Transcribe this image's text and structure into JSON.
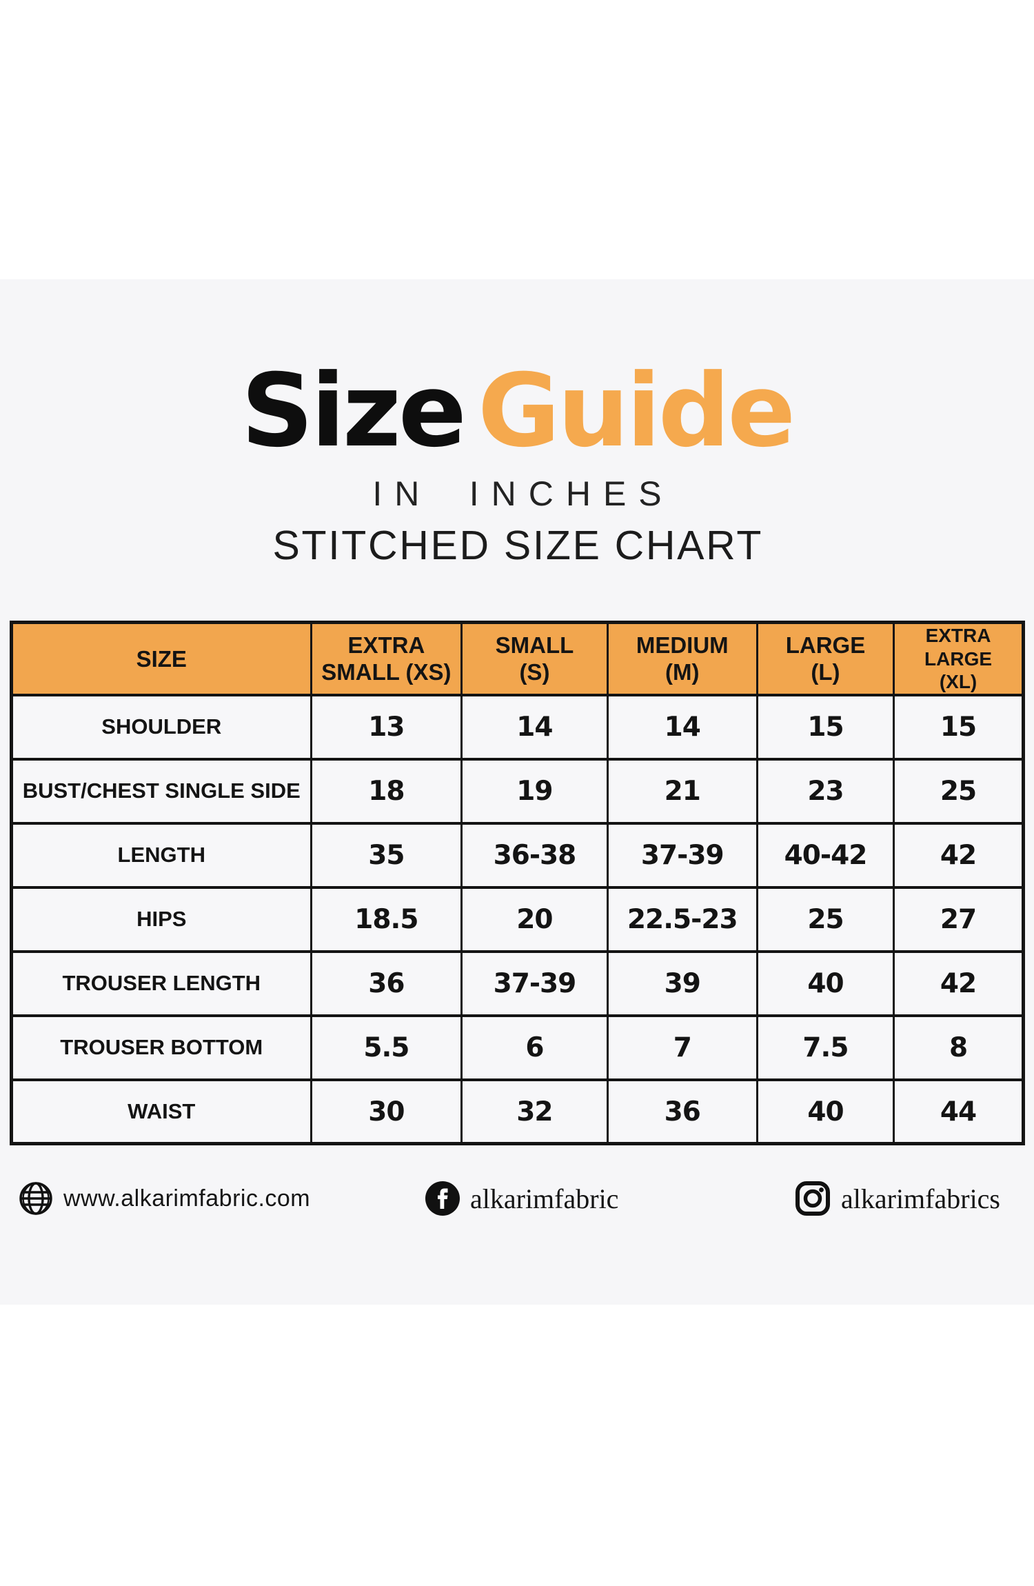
{
  "header": {
    "title_black": "Size",
    "title_orange": "Guide",
    "subtitle1": "IN INCHES",
    "subtitle2": "STITCHED SIZE CHART"
  },
  "colors": {
    "accent_orange": "#F5A94E",
    "table_header_orange": "#F2A64E",
    "band_gray": "#F6F6F8",
    "cell_background": "#F7F7F9",
    "text_ink": "#141414"
  },
  "chart_data": {
    "type": "table",
    "title": "Size Guide",
    "subtitle": [
      "IN INCHES",
      "STITCHED SIZE CHART"
    ],
    "units": "inches",
    "columns": [
      "SIZE",
      "EXTRA\nSMALL (XS)",
      "SMALL\n(S)",
      "MEDIUM\n(M)",
      "LARGE\n(L)",
      "EXTRA LARGE\n(XL)"
    ],
    "rows": [
      {
        "label": "SHOULDER",
        "values": [
          "13",
          "14",
          "14",
          "15",
          "15"
        ]
      },
      {
        "label": "BUST/CHEST SINGLE SIDE",
        "values": [
          "18",
          "19",
          "21",
          "23",
          "25"
        ]
      },
      {
        "label": "LENGTH",
        "values": [
          "35",
          "36-38",
          "37-39",
          "40-42",
          "42"
        ]
      },
      {
        "label": "HIPS",
        "values": [
          "18.5",
          "20",
          "22.5-23",
          "25",
          "27"
        ]
      },
      {
        "label": "TROUSER LENGTH",
        "values": [
          "36",
          "37-39",
          "39",
          "40",
          "42"
        ]
      },
      {
        "label": "TROUSER BOTTOM",
        "values": [
          "5.5",
          "6",
          "7",
          "7.5",
          "8"
        ]
      },
      {
        "label": "WAIST",
        "values": [
          "30",
          "32",
          "36",
          "40",
          "44"
        ]
      }
    ]
  },
  "footer": {
    "website": "www.alkarimfabric.com",
    "facebook_handle": "alkarimfabric",
    "instagram_handle": "alkarimfabrics",
    "icons": [
      "globe-icon",
      "facebook-icon",
      "instagram-icon"
    ]
  }
}
